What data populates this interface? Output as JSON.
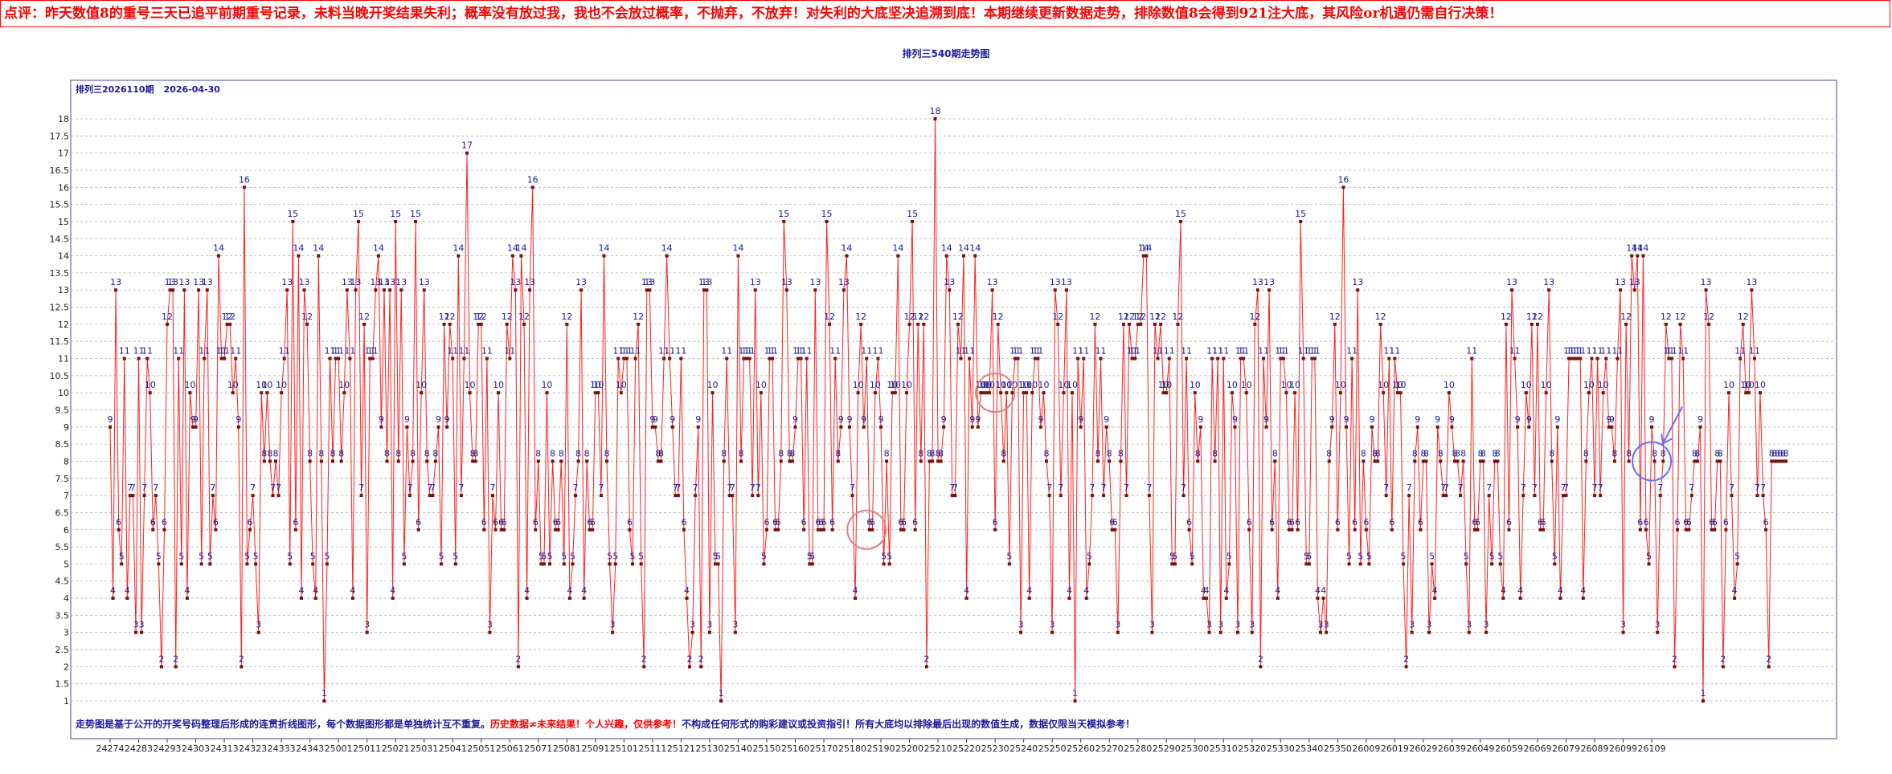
{
  "comment": "点评：昨天数值8的重号三天已追平前期重号记录，未料当晚开奖结果失利；概率没有放过我，我也不会放过概率，不抛弃，不放弃！对失利的大底坚决追溯到底！本期继续更新数据走势，排除数值8会得到921注大底，其风险or机遇仍需自行决策！",
  "chart_title": "排列三540期走势图",
  "sub_title": "排列三2026110期",
  "date": "2026-04-30",
  "footnote": {
    "part1": "走势图是基于公开的开奖号码整理后形成的连贯折线图形，每个数据图形都是单独统计互不重复。",
    "part2": "历史数据≠未来结果！个人兴趣，仅供参考！",
    "part3": "不构成任何形式的购彩建议或投资指引！所有大底均以排除最后出现的数值生成，数据仅限当天模拟参考！"
  },
  "colors": {
    "line": "#ff2020",
    "marker": "#7a1010",
    "label": "#1a1a9c",
    "grid": "#b0b0b0",
    "circle_red": "#e08080",
    "circle_blue": "#6a6aff"
  },
  "chart_data": {
    "type": "line",
    "ylim": [
      1,
      18
    ],
    "y_ticks": [
      1,
      1.5,
      2,
      2.5,
      3,
      3.5,
      4,
      4.5,
      5,
      5.5,
      6,
      6.5,
      7,
      7.5,
      8,
      8.5,
      9,
      9.5,
      10,
      10.5,
      11,
      11.5,
      12,
      12.5,
      13,
      13.5,
      14,
      14.5,
      15,
      15.5,
      16,
      16.5,
      17,
      17.5,
      18
    ],
    "x_tick_labels": [
      "24274",
      "24283",
      "24293",
      "24303",
      "24313",
      "24323",
      "24333",
      "24343",
      "25001",
      "25011",
      "25021",
      "25031",
      "25041",
      "25051",
      "25061",
      "25071",
      "25081",
      "25091",
      "25101",
      "25111",
      "25121",
      "25130",
      "25140",
      "25150",
      "25160",
      "25170",
      "25180",
      "25190",
      "25200",
      "25210",
      "25220",
      "25230",
      "25240",
      "25250",
      "25260",
      "25270",
      "25280",
      "25290",
      "25300",
      "25310",
      "25320",
      "25330",
      "25340",
      "25350",
      "26009",
      "26019",
      "26029",
      "26039",
      "26049",
      "26059",
      "26069",
      "26079",
      "26089",
      "26099",
      "26109"
    ],
    "grid": "horizontal-dashed",
    "series": [
      {
        "values": [
          9,
          4,
          13,
          6,
          5,
          11,
          4,
          7,
          7,
          3,
          11,
          3,
          7,
          11,
          10,
          6,
          7,
          5,
          2,
          6,
          12,
          13,
          13,
          2,
          11,
          5,
          13,
          4,
          10,
          9,
          9,
          13,
          5,
          11,
          13,
          5,
          7,
          6,
          14,
          11,
          11,
          12,
          12,
          10,
          11,
          9,
          2,
          16,
          5,
          6,
          7,
          5,
          3,
          10,
          8,
          10,
          8,
          7,
          8,
          7,
          10,
          11,
          13,
          5,
          15,
          6,
          14,
          4,
          13,
          12,
          8,
          5,
          4,
          14,
          8,
          1,
          5,
          11,
          8,
          11,
          11,
          8,
          10,
          13,
          11,
          4,
          13,
          15,
          7,
          12,
          3,
          11,
          11,
          13,
          14,
          9,
          13,
          8,
          13,
          4,
          15,
          8,
          13,
          5,
          9,
          7,
          8,
          15,
          6,
          10,
          13,
          8,
          7,
          7,
          8,
          9,
          5,
          12,
          9,
          12,
          11,
          5,
          14,
          7,
          11,
          17,
          10,
          8,
          8,
          12,
          12,
          6,
          11,
          3,
          7,
          6,
          10,
          6,
          6,
          12,
          11,
          14,
          13,
          2,
          14,
          12,
          4,
          13,
          16,
          6,
          8,
          5,
          5,
          10,
          5,
          8,
          6,
          6,
          8,
          5,
          12,
          4,
          5,
          7,
          8,
          13,
          4,
          8,
          6,
          6,
          10,
          10,
          7,
          14,
          8,
          5,
          3,
          5,
          11,
          10,
          11,
          11,
          6,
          5,
          11,
          12,
          5,
          2,
          13,
          13,
          9,
          9,
          8,
          8,
          11,
          14,
          11,
          9,
          7,
          7,
          11,
          6,
          4,
          2,
          3,
          7,
          9,
          2,
          13,
          13,
          3,
          10,
          5,
          5,
          1,
          8,
          11,
          7,
          7,
          3,
          14,
          8,
          11,
          11,
          11,
          7,
          13,
          7,
          10,
          5,
          6,
          11,
          11,
          6,
          6,
          8,
          15,
          13,
          8,
          8,
          9,
          11,
          11,
          6,
          11,
          5,
          5,
          13,
          6,
          6,
          6,
          15,
          12,
          6,
          11,
          8,
          9,
          13,
          14,
          9,
          7,
          4,
          10,
          12,
          9,
          11,
          6,
          6,
          10,
          11,
          9,
          5,
          8,
          5,
          10,
          10,
          14,
          6,
          6,
          10,
          12,
          15,
          6,
          12,
          8,
          12,
          2,
          8,
          8,
          18,
          8,
          8,
          9,
          14,
          13,
          7,
          7,
          12,
          11,
          14,
          4,
          11,
          9,
          14,
          9,
          10,
          10,
          10,
          10,
          13,
          6,
          12,
          10,
          8,
          10,
          5,
          10,
          11,
          11,
          3,
          10,
          10,
          4,
          10,
          11,
          11,
          9,
          10,
          8,
          7,
          3,
          13,
          12,
          7,
          10,
          13,
          4,
          10,
          1,
          11,
          9,
          11,
          4,
          5,
          7,
          12,
          8,
          11,
          7,
          9,
          8,
          6,
          6,
          3,
          8,
          12,
          7,
          12,
          11,
          11,
          12,
          12,
          14,
          14,
          7,
          3,
          12,
          11,
          12,
          10,
          10,
          11,
          5,
          5,
          12,
          15,
          7,
          11,
          6,
          5,
          10,
          8,
          9,
          4,
          4,
          3,
          11,
          8,
          11,
          3,
          11,
          4,
          5,
          10,
          9,
          3,
          11,
          11,
          10,
          6,
          3,
          12,
          13,
          2,
          11,
          9,
          13,
          6,
          8,
          4,
          11,
          11,
          10,
          6,
          6,
          10,
          6,
          15,
          11,
          5,
          5,
          11,
          11,
          4,
          3,
          4,
          3,
          8,
          9,
          12,
          6,
          10,
          16,
          9,
          5,
          11,
          6,
          13,
          5,
          8,
          6,
          5,
          9,
          8,
          8,
          12,
          10,
          7,
          11,
          6,
          11,
          10,
          10,
          5,
          2,
          7,
          3,
          8,
          9,
          6,
          8,
          8,
          3,
          5,
          4,
          9,
          8,
          7,
          7,
          10,
          9,
          8,
          8,
          7,
          8,
          5,
          3,
          11,
          6,
          6,
          8,
          8,
          3,
          7,
          5,
          8,
          8,
          5,
          4,
          12,
          6,
          13,
          11,
          9,
          4,
          7,
          10,
          9,
          12,
          7,
          12,
          6,
          6,
          10,
          13,
          8,
          5,
          9,
          4,
          7,
          7,
          11,
          11,
          11,
          11,
          11,
          4,
          8,
          10,
          11,
          7,
          11,
          7,
          10,
          11,
          9,
          9,
          8,
          11,
          13,
          3,
          12,
          8,
          14,
          13,
          14,
          6,
          14,
          6,
          5,
          9,
          8,
          3,
          7,
          8,
          12,
          11,
          11,
          2,
          6,
          12,
          11,
          6,
          6,
          7,
          8,
          8,
          9,
          1,
          13,
          12,
          6,
          6,
          8,
          8,
          2,
          6,
          10,
          7,
          4,
          5,
          11,
          12,
          10,
          10,
          13,
          11,
          7,
          10,
          7,
          6,
          2,
          8,
          8,
          8,
          8,
          8,
          8
        ]
      }
    ]
  },
  "annotations": [
    {
      "type": "circle",
      "color": "red",
      "at_period": 25185,
      "value": 6
    },
    {
      "type": "circle",
      "color": "red",
      "at_period": 25230,
      "value": 10
    },
    {
      "type": "circle",
      "color": "blue",
      "at_period": 26109,
      "value": 8
    }
  ]
}
